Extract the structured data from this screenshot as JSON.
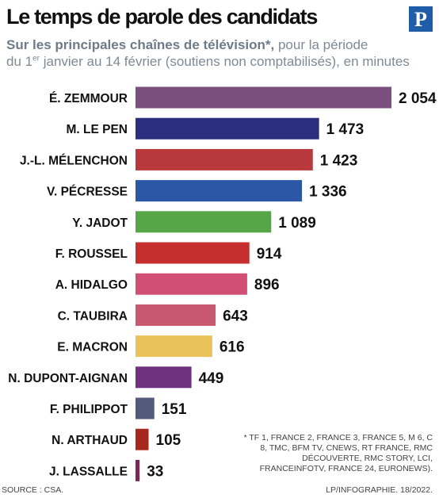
{
  "title": "Le temps de parole des candidats",
  "subtitle": {
    "bold": "Sur les principales chaînes de télévision*,",
    "line1_rest": " pour la période",
    "line2_pre": "du 1",
    "line2_sup": "er",
    "line2_post": " janvier au 14 février (soutiens non comptabilisés), en minutes"
  },
  "logo": {
    "letter": "P",
    "color": "#1f5da8"
  },
  "footnote": "* TF 1, FRANCE 2, FRANCE 3, FRANCE 5, M 6, C 8, TMC, BFM TV, CNEWS, RT FRANCE, RMC DÉCOUVERTE, RMC STORY, LCI, FRANCEINFOTV, FRANCE 24, EURONEWS).",
  "source": "SOURCE : CSA.",
  "credit": "LP/INFOGRAPHIE.  18/2022.",
  "chart_data": {
    "type": "bar",
    "orientation": "horizontal",
    "categories": [
      "É. ZEMMOUR",
      "M. LE PEN",
      "J.-L. MÉLENCHON",
      "V. PÉCRESSE",
      "Y. JADOT",
      "F. ROUSSEL",
      "A. HIDALGO",
      "C. TAUBIRA",
      "E. MACRON",
      "N. DUPONT-AIGNAN",
      "F. PHILIPPOT",
      "N. ARTHAUD",
      "J. LASSALLE"
    ],
    "values": [
      2054,
      1473,
      1423,
      1336,
      1089,
      914,
      896,
      643,
      616,
      449,
      151,
      105,
      33
    ],
    "value_labels": [
      "2 054",
      "1 473",
      "1 423",
      "1 336",
      "1 089",
      "914",
      "896",
      "643",
      "616",
      "449",
      "151",
      "105",
      "33"
    ],
    "colors": [
      "#7a4f7d",
      "#2b2d7e",
      "#b8383c",
      "#2c56a6",
      "#56a647",
      "#c5302f",
      "#d14f74",
      "#c85870",
      "#e9c25a",
      "#70317e",
      "#545a7c",
      "#a5271e",
      "#7b2757"
    ],
    "xlim": [
      0,
      2054
    ],
    "grid": false,
    "legend": "none"
  }
}
